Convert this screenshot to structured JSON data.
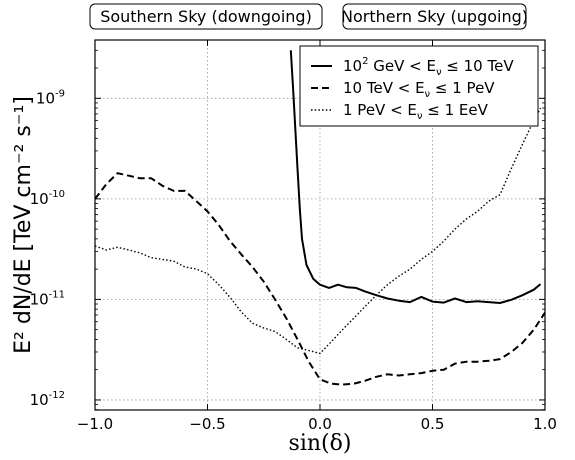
{
  "chart_data": {
    "type": "line",
    "title": "",
    "xlabel": "sin(δ)",
    "ylabel": "E² dN/dE [TeV cm⁻² s⁻¹]",
    "xlim": [
      -1.0,
      1.0
    ],
    "ylim_log10": [
      -12.1,
      -8.42
    ],
    "y_scale": "log",
    "grid": true,
    "legend_position": "top-right",
    "x_ticks": [
      {
        "value": -1.0,
        "label": "−1.0"
      },
      {
        "value": -0.5,
        "label": "−0.5"
      },
      {
        "value": 0.0,
        "label": "0.0"
      },
      {
        "value": 0.5,
        "label": "0.5"
      },
      {
        "value": 1.0,
        "label": "1.0"
      }
    ],
    "y_ticks": [
      {
        "exp": -12,
        "base": "10",
        "sup": "-12"
      },
      {
        "exp": -11,
        "base": "10",
        "sup": "-11"
      },
      {
        "exp": -10,
        "base": "10",
        "sup": "-10"
      },
      {
        "exp": -9,
        "base": "10",
        "sup": "-9"
      }
    ],
    "regions": [
      {
        "label": "Southern Sky (downgoing)"
      },
      {
        "label": "Northern Sky (upgoing)"
      }
    ],
    "series": [
      {
        "name": "10² GeV < E_ν ≤ 10 TeV",
        "legend_parts": [
          "10",
          "2",
          " GeV < E",
          "ν",
          " ≤ 10 TeV"
        ],
        "style": "solid",
        "x": [
          -0.13,
          -0.12,
          -0.11,
          -0.1,
          -0.09,
          -0.08,
          -0.06,
          -0.03,
          0.0,
          0.04,
          0.08,
          0.12,
          0.16,
          0.2,
          0.25,
          0.3,
          0.35,
          0.4,
          0.45,
          0.5,
          0.55,
          0.6,
          0.65,
          0.7,
          0.75,
          0.8,
          0.85,
          0.9,
          0.95,
          0.98
        ],
        "y": [
          3e-09,
          1.3e-09,
          5e-10,
          2e-10,
          8e-11,
          4e-11,
          2.2e-11,
          1.6e-11,
          1.4e-11,
          1.3e-11,
          1.4e-11,
          1.32e-11,
          1.3e-11,
          1.2e-11,
          1.1e-11,
          1.02e-11,
          9.7e-12,
          9.4e-12,
          1.06e-11,
          9.5e-12,
          9.3e-12,
          1.02e-11,
          9.4e-12,
          9.6e-12,
          9.4e-12,
          9.2e-12,
          9.9e-12,
          1.1e-11,
          1.25e-11,
          1.42e-11
        ]
      },
      {
        "name": "10 TeV < E_ν ≤ 1 PeV",
        "legend_parts": [
          "10 TeV < E",
          "ν",
          " ≤ 1 PeV"
        ],
        "style": "dashed",
        "x": [
          -1.0,
          -0.95,
          -0.9,
          -0.85,
          -0.8,
          -0.75,
          -0.7,
          -0.65,
          -0.6,
          -0.55,
          -0.5,
          -0.45,
          -0.4,
          -0.35,
          -0.3,
          -0.25,
          -0.2,
          -0.15,
          -0.1,
          -0.05,
          0.0,
          0.05,
          0.1,
          0.15,
          0.2,
          0.25,
          0.3,
          0.35,
          0.4,
          0.45,
          0.5,
          0.55,
          0.6,
          0.65,
          0.7,
          0.75,
          0.8,
          0.85,
          0.9,
          0.95,
          1.0
        ],
        "y": [
          1e-10,
          1.4e-10,
          1.8e-10,
          1.7e-10,
          1.6e-10,
          1.6e-10,
          1.35e-10,
          1.2e-10,
          1.2e-10,
          9.5e-11,
          7.5e-11,
          5.5e-11,
          3.8e-11,
          2.8e-11,
          2.1e-11,
          1.5e-11,
          1e-11,
          6.5e-12,
          4e-12,
          2.4e-12,
          1.6e-12,
          1.45e-12,
          1.42e-12,
          1.45e-12,
          1.55e-12,
          1.7e-12,
          1.8e-12,
          1.75e-12,
          1.8e-12,
          1.85e-12,
          1.95e-12,
          2e-12,
          2.3e-12,
          2.4e-12,
          2.4e-12,
          2.45e-12,
          2.55e-12,
          3e-12,
          3.7e-12,
          5e-12,
          7.4e-12
        ]
      },
      {
        "name": "1 PeV < E_ν ≤ 1 EeV",
        "legend_parts": [
          "1 PeV < E",
          "ν",
          " ≤ 1 EeV"
        ],
        "style": "dotted",
        "x": [
          -1.0,
          -0.95,
          -0.9,
          -0.85,
          -0.8,
          -0.75,
          -0.7,
          -0.65,
          -0.6,
          -0.55,
          -0.5,
          -0.45,
          -0.4,
          -0.35,
          -0.3,
          -0.25,
          -0.2,
          -0.15,
          -0.1,
          -0.05,
          0.0,
          0.05,
          0.1,
          0.15,
          0.2,
          0.25,
          0.3,
          0.35,
          0.4,
          0.45,
          0.5,
          0.55,
          0.6,
          0.65,
          0.7,
          0.75,
          0.8,
          0.85,
          0.9,
          0.95,
          0.98
        ],
        "y": [
          3.4e-11,
          3.1e-11,
          3.3e-11,
          3.1e-11,
          2.9e-11,
          2.6e-11,
          2.5e-11,
          2.4e-11,
          2.1e-11,
          2e-11,
          1.8e-11,
          1.4e-11,
          1.05e-11,
          7.5e-12,
          5.8e-12,
          5.2e-12,
          4.8e-12,
          4e-12,
          3.3e-12,
          3.1e-12,
          2.9e-12,
          3.8e-12,
          5e-12,
          6.5e-12,
          8.5e-12,
          1.1e-11,
          1.4e-11,
          1.7e-11,
          2e-11,
          2.5e-11,
          3e-11,
          3.8e-11,
          5e-11,
          6.3e-11,
          7.5e-11,
          9.5e-11,
          1.1e-10,
          2e-10,
          3.5e-10,
          6e-10,
          8e-10
        ]
      }
    ]
  }
}
